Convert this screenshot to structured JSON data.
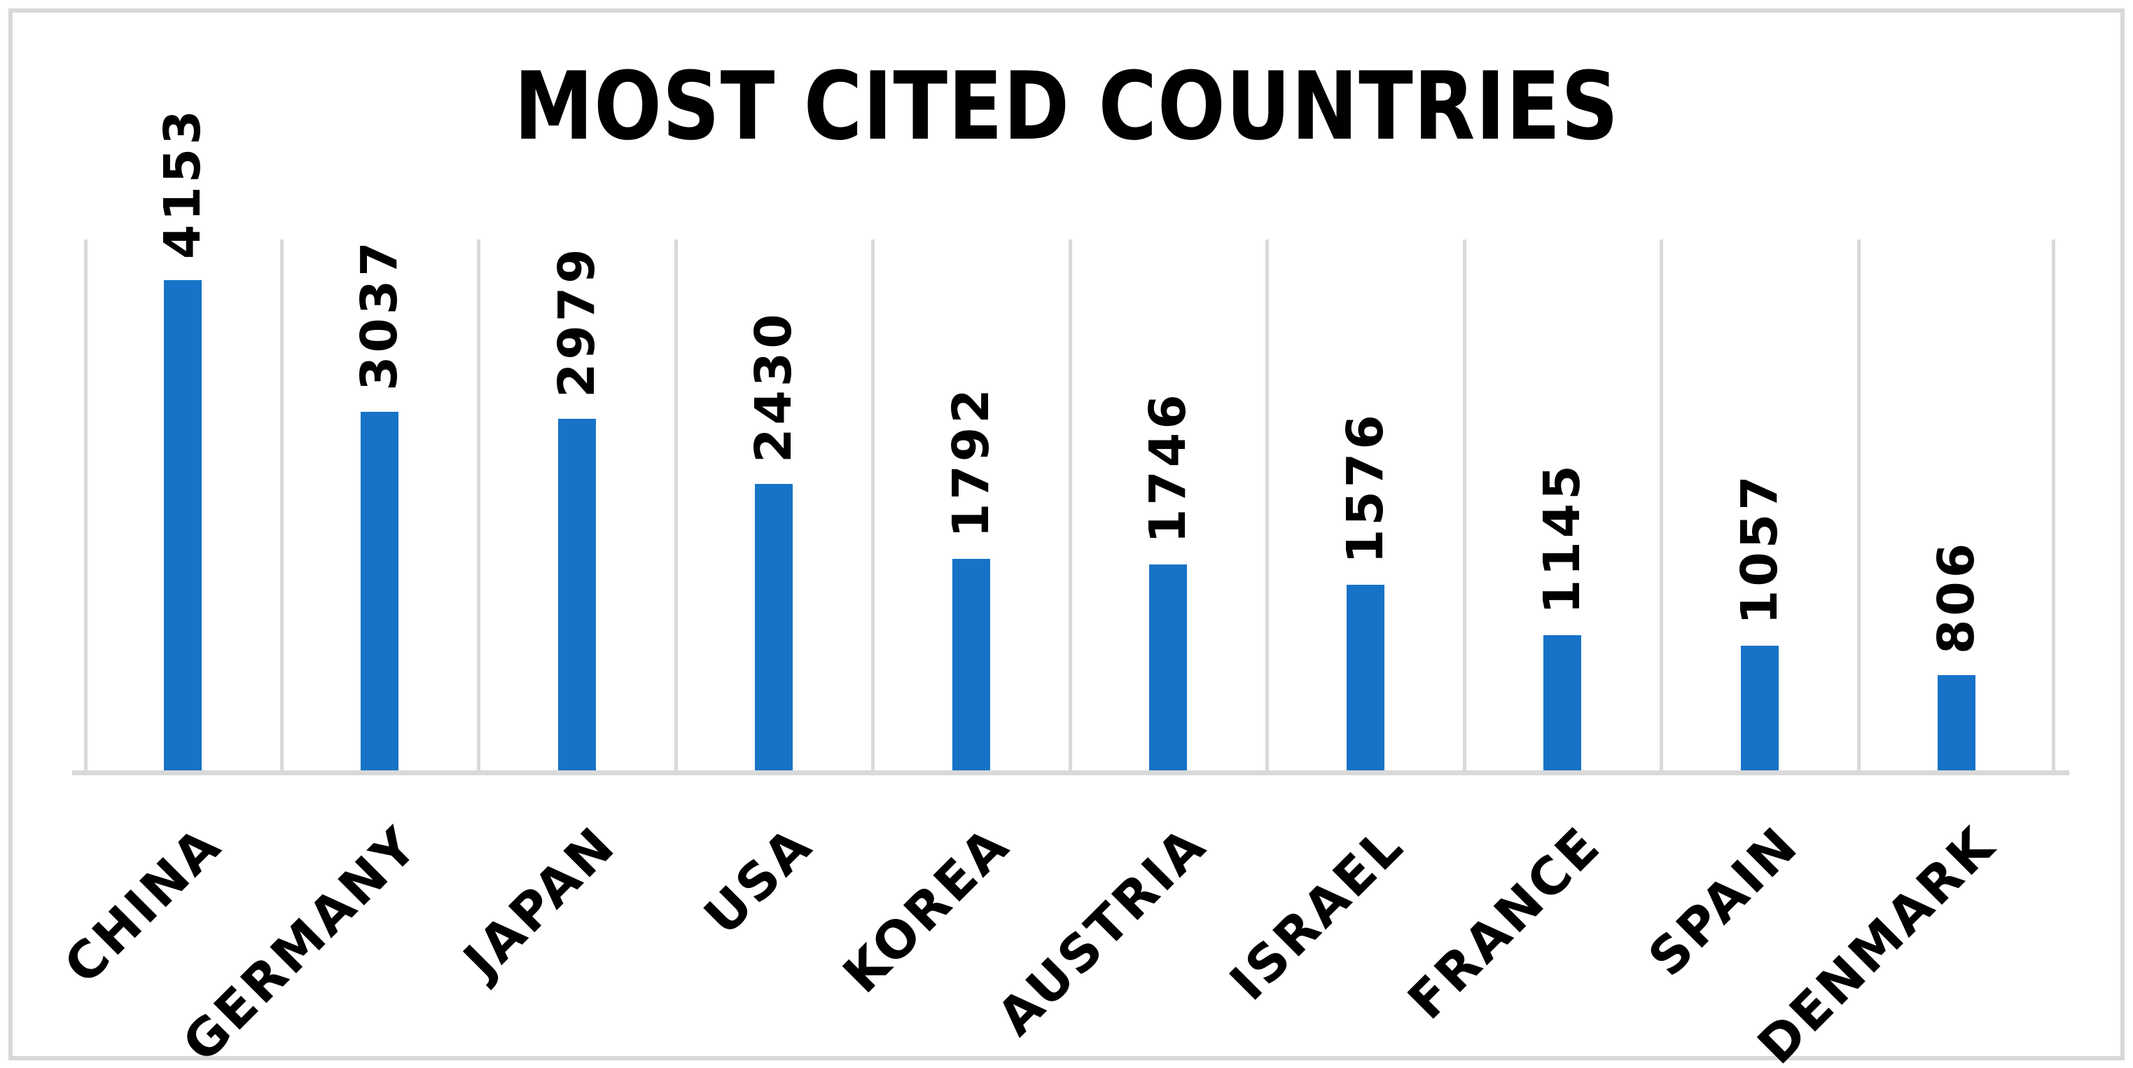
{
  "chart_data": {
    "type": "bar",
    "title": "MOST CITED COUNTRIES",
    "categories": [
      "CHINA",
      "GERMANY",
      "JAPAN",
      "USA",
      "KOREA",
      "AUSTRIA",
      "ISRAEL",
      "FRANCE",
      "SPAIN",
      "DENMARK"
    ],
    "values": [
      4153,
      3037,
      2979,
      2430,
      1792,
      1746,
      1576,
      1145,
      1057,
      806
    ],
    "data_labels": "values shown rotated 90 degrees above each bar",
    "xlabel": "",
    "ylabel": "",
    "ylim": [
      0,
      4500
    ],
    "grid": "vertical gridlines at category boundaries only",
    "legend": "none",
    "bar_color": "#1773C7",
    "gridline_color": "#D9D9D9",
    "axis_line_color": "#D9D9D9",
    "border_color": "#D7D7D7",
    "text_color": "#000000"
  }
}
